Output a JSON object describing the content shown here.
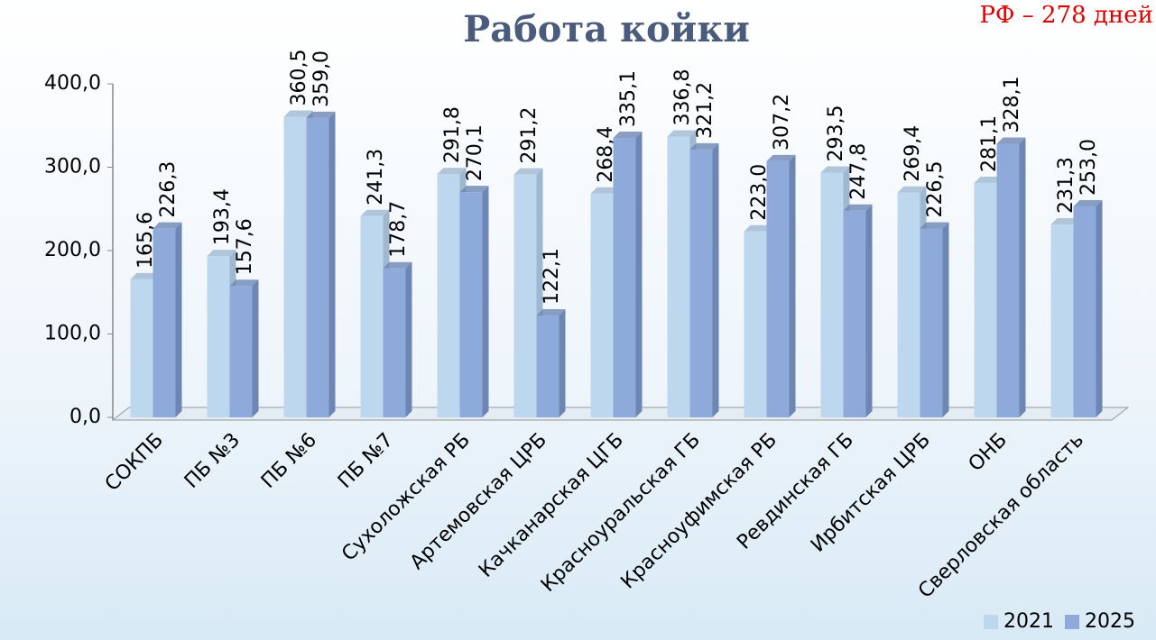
{
  "chart_data": {
    "type": "bar",
    "title": "Работа койки",
    "annotation": "РФ – 278 дней",
    "categories": [
      "СОКПБ",
      "ПБ №3",
      "ПБ №6",
      "ПБ №7",
      "Сухоложская РБ",
      "Артемовская ЦРБ",
      "Качканарская ЦГБ",
      "Красноуральская ГБ",
      "Красноуфимская РБ",
      "Ревдинская ГБ",
      "Ирбитская ЦРБ",
      "ОНБ",
      "Сверловская область"
    ],
    "series": [
      {
        "name": "2021",
        "color": "#bdd7ee",
        "side": "#9fb8d0",
        "values": [
          165.6,
          193.4,
          360.5,
          241.3,
          291.8,
          291.2,
          268.4,
          336.8,
          223.0,
          293.5,
          269.4,
          281.1,
          231.3
        ],
        "value_labels": [
          "165,6",
          "193,4",
          "360,5",
          "241,3",
          "291,8",
          "291,2",
          "268,4",
          "336,8",
          "223,0",
          "293,5",
          "269,4",
          "281,1",
          "231,3"
        ]
      },
      {
        "name": "2025",
        "color": "#8eaadb",
        "side": "#6d86b3",
        "values": [
          226.3,
          157.6,
          359.0,
          178.7,
          270.1,
          122.1,
          335.1,
          321.2,
          307.2,
          247.8,
          226.5,
          328.1,
          253.0
        ],
        "value_labels": [
          "226,3",
          "157,6",
          "359,0",
          "178,7",
          "270,1",
          "122,1",
          "335,1",
          "321,2",
          "307,2",
          "247,8",
          "226,5",
          "328,1",
          "253,0"
        ]
      }
    ],
    "ylim": [
      0,
      400
    ],
    "yticks": [
      {
        "value": 0,
        "label": "0,0"
      },
      {
        "value": 100,
        "label": "100,0"
      },
      {
        "value": 200,
        "label": "200,0"
      },
      {
        "value": 300,
        "label": "300,0"
      },
      {
        "value": 400,
        "label": "400,0"
      }
    ],
    "legend": "bottom-right",
    "grid": false
  }
}
